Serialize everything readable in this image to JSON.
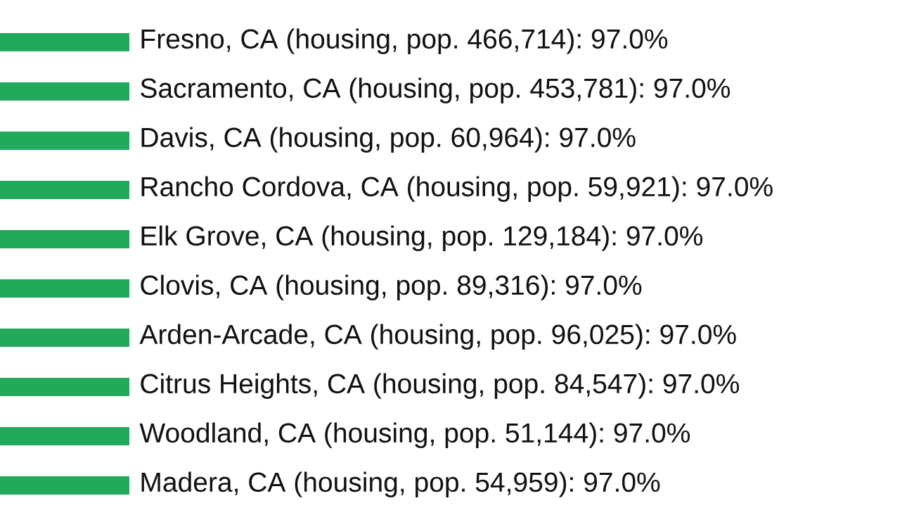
{
  "chart_data": {
    "type": "bar",
    "orientation": "horizontal",
    "color": "#22a95b",
    "categories": [
      null,
      null,
      null,
      null,
      null,
      null,
      null,
      null,
      null,
      null
    ],
    "values": [
      97.0,
      97.0,
      97.0,
      97.0,
      97.0,
      97.0,
      97.0,
      97.0,
      97.0,
      97.0
    ],
    "value_labels": [
      "Fresno, CA (housing, pop. 466,714): 97.0%",
      "Sacramento, CA (housing, pop. 453,781): 97.0%",
      "Davis, CA (housing, pop. 60,964): 97.0%",
      "Rancho Cordova, CA (housing, pop. 59,921): 97.0%",
      "Elk Grove, CA (housing, pop. 129,184): 97.0%",
      "Clovis, CA (housing, pop. 89,316): 97.0%",
      "Arden-Arcade, CA (housing, pop. 96,025): 97.0%",
      "Citrus Heights, CA (housing, pop. 84,547): 97.0%",
      "Woodland, CA (housing, pop. 51,144): 97.0%",
      "Madera, CA (housing, pop. 54,959): 97.0%"
    ]
  }
}
